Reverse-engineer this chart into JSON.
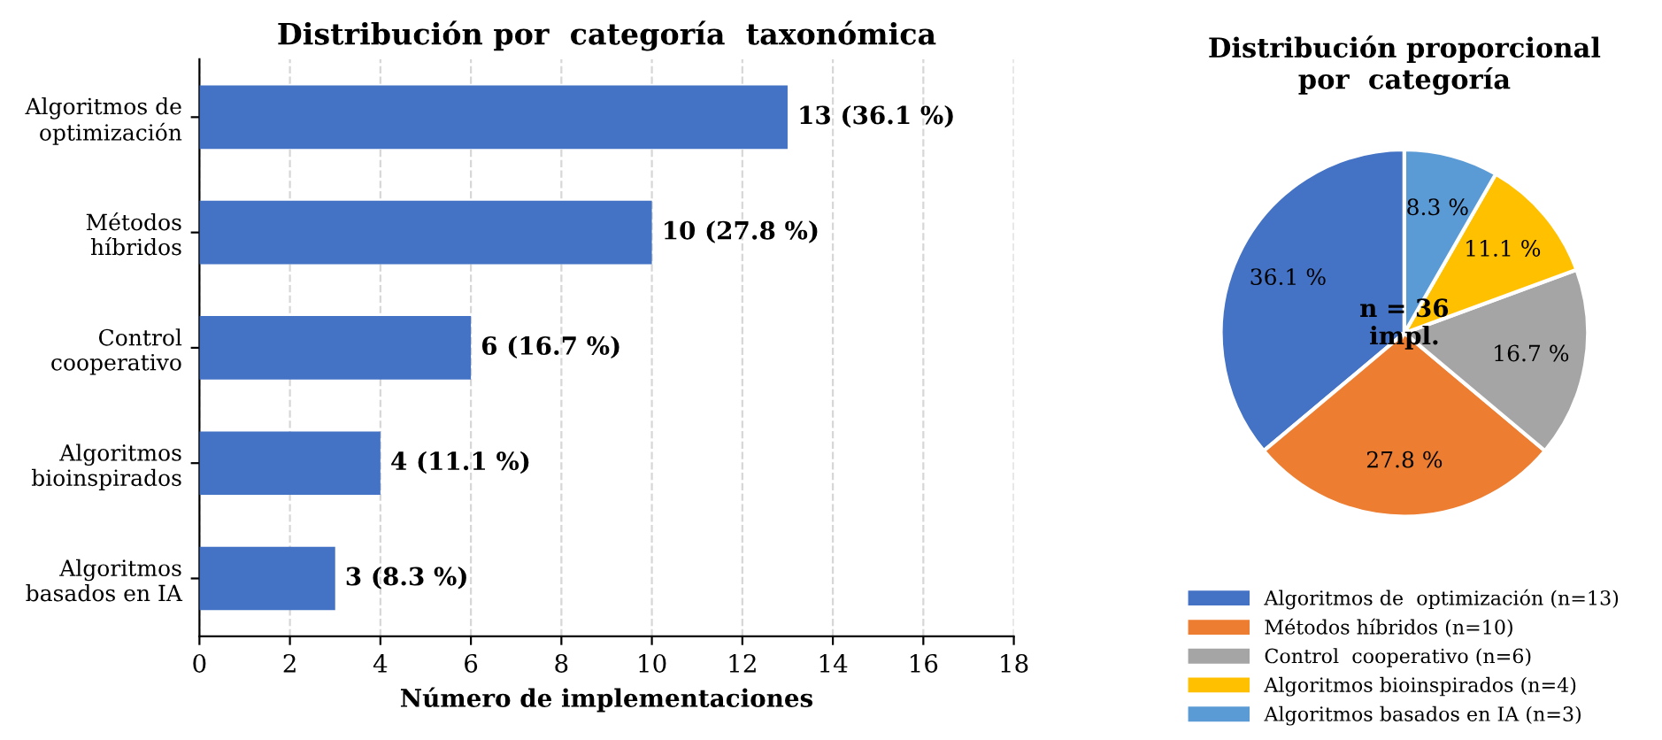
{
  "chart_data": [
    {
      "type": "bar",
      "orientation": "horizontal",
      "title": "Distribución por  categoría  taxonómica",
      "xlabel": "Número de implementaciones",
      "categories": [
        "Algoritmos de\noptimización",
        "Métodos\nhíbridos",
        "Control\ncooperativo",
        "Algoritmos\nbioinspirados",
        "Algoritmos\nbasados en IA"
      ],
      "values": [
        13,
        10,
        6,
        4,
        3
      ],
      "color": "#4472c4",
      "value_labels": [
        "13 (36.1 %)",
        "10 (27.8 %)",
        "6 (16.7 %)",
        "4 (11.1 %)",
        "3 (8.3 %)"
      ],
      "xlim": [
        0,
        18
      ],
      "xticks": [
        0,
        2,
        4,
        6,
        8,
        10,
        12,
        14,
        16,
        18
      ],
      "grid": "x"
    },
    {
      "type": "pie",
      "title": "Distribución proporcional\npor  categoría",
      "categories": [
        "Algoritmos de  optimización (n=13)",
        "Métodos híbridos (n=10)",
        "Control  cooperativo (n=6)",
        "Algoritmos bioinspirados (n=4)",
        "Algoritmos basados en IA (n=3)"
      ],
      "values": [
        36.1,
        27.8,
        16.7,
        11.1,
        8.3
      ],
      "colors": [
        "#4472c4",
        "#ed7d31",
        "#a5a5a5",
        "#ffc000",
        "#5b9bd5"
      ],
      "value_labels": [
        "36.1 %",
        "27.8 %",
        "16.7 %",
        "11.1 %",
        "8.3 %"
      ],
      "annotations": [
        "n = 36\nimpl."
      ],
      "legend": "bottom"
    }
  ]
}
